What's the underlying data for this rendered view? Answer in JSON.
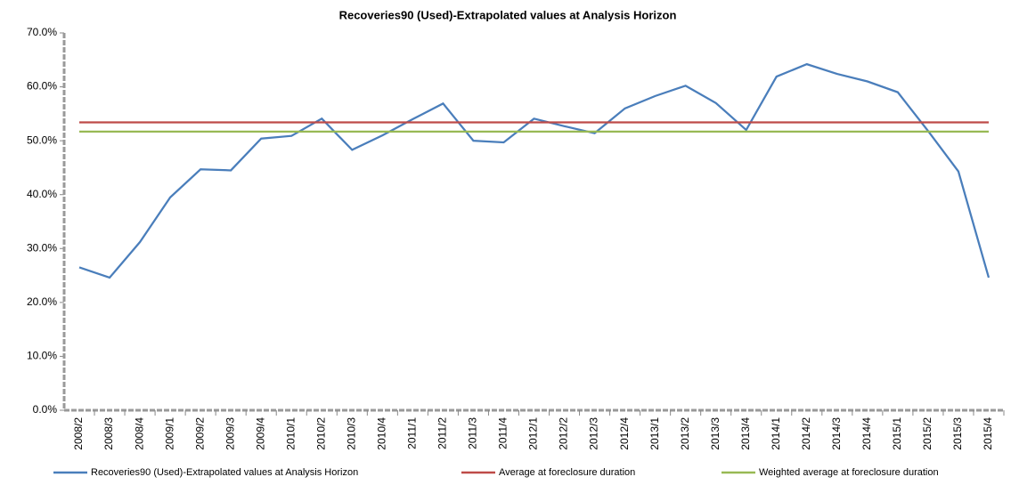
{
  "chart_data": {
    "type": "line",
    "title": "Recoveries90 (Used)-Extrapolated  values at Analysis Horizon",
    "categories": [
      "2008/2",
      "2008/3",
      "2008/4",
      "2009/1",
      "2009/2",
      "2009/3",
      "2009/4",
      "2010/1",
      "2010/2",
      "2010/3",
      "2010/4",
      "2011/1",
      "2011/2",
      "2011/3",
      "2011/4",
      "2012/1",
      "2012/2",
      "2012/3",
      "2012/4",
      "2013/1",
      "2013/2",
      "2013/3",
      "2013/4",
      "2014/1",
      "2014/2",
      "2014/3",
      "2014/4",
      "2015/1",
      "2015/2",
      "2015/3",
      "2015/4"
    ],
    "series": [
      {
        "name": "Recoveries90 (Used)-Extrapolated values at Analysis Horizon",
        "color": "#4a7ebb",
        "values": [
          26.5,
          24.6,
          31.2,
          39.5,
          44.7,
          44.5,
          50.4,
          50.9,
          54.1,
          48.3,
          51.0,
          54.0,
          56.9,
          50.0,
          49.7,
          54.1,
          52.7,
          51.4,
          56.0,
          58.3,
          60.2,
          57.0,
          52.0,
          61.9,
          64.2,
          62.4,
          61.0,
          59.0,
          51.8,
          44.3,
          24.6
        ]
      },
      {
        "name": "Average at foreclosure duration",
        "color": "#be4b48",
        "values": [
          53.4,
          53.4,
          53.4,
          53.4,
          53.4,
          53.4,
          53.4,
          53.4,
          53.4,
          53.4,
          53.4,
          53.4,
          53.4,
          53.4,
          53.4,
          53.4,
          53.4,
          53.4,
          53.4,
          53.4,
          53.4,
          53.4,
          53.4,
          53.4,
          53.4,
          53.4,
          53.4,
          53.4,
          53.4,
          53.4,
          53.4
        ]
      },
      {
        "name": "Weighted average at foreclosure duration",
        "color": "#98b954",
        "values": [
          51.7,
          51.7,
          51.7,
          51.7,
          51.7,
          51.7,
          51.7,
          51.7,
          51.7,
          51.7,
          51.7,
          51.7,
          51.7,
          51.7,
          51.7,
          51.7,
          51.7,
          51.7,
          51.7,
          51.7,
          51.7,
          51.7,
          51.7,
          51.7,
          51.7,
          51.7,
          51.7,
          51.7,
          51.7,
          51.7,
          51.7
        ]
      }
    ],
    "ylim": [
      0,
      70
    ],
    "yticks": [
      {
        "value": 0,
        "label": "0.0%"
      },
      {
        "value": 10,
        "label": "10.0%"
      },
      {
        "value": 20,
        "label": "20.0%"
      },
      {
        "value": 30,
        "label": "30.0%"
      },
      {
        "value": 40,
        "label": "40.0%"
      },
      {
        "value": 50,
        "label": "50.0%"
      },
      {
        "value": 60,
        "label": "60.0%"
      },
      {
        "value": 70,
        "label": "70.0%"
      }
    ],
    "grid": false,
    "legend": "bottom"
  }
}
